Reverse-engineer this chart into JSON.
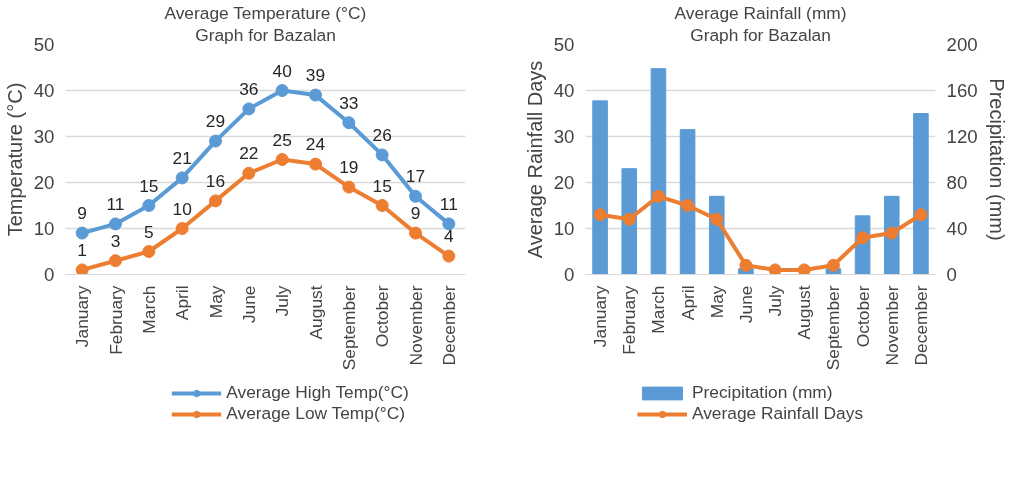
{
  "chart_data": [
    {
      "type": "line",
      "title": "Average Temperature (°C)",
      "subtitle": "Graph for Bazalan",
      "ylabel": "Temperature (°C)",
      "categories": [
        "January",
        "February",
        "March",
        "April",
        "May",
        "June",
        "July",
        "August",
        "September",
        "October",
        "November",
        "December"
      ],
      "series": [
        {
          "name": "Average High Temp(°C)",
          "color": "#5b9bd5",
          "values": [
            9,
            11,
            15,
            21,
            29,
            36,
            40,
            39,
            33,
            26,
            17,
            11
          ]
        },
        {
          "name": "Average Low Temp(°C)",
          "color": "#ed7d31",
          "values": [
            1,
            3,
            5,
            10,
            16,
            22,
            25,
            24,
            19,
            15,
            9,
            4
          ]
        }
      ],
      "ylim": [
        0,
        50
      ],
      "yticks": [
        0,
        10,
        20,
        30,
        40,
        50
      ],
      "grid": "y",
      "legend": "bottom",
      "marker": "circle",
      "line_style": "solid",
      "data_labels": true
    },
    {
      "type": "bar",
      "title": "Average Rainfall (mm)",
      "subtitle": "Graph for Bazalan",
      "ylabel": "Average Rainfall Days",
      "y2label": "Precipitation (mm)",
      "categories": [
        "January",
        "February",
        "March",
        "April",
        "May",
        "June",
        "July",
        "August",
        "September",
        "October",
        "November",
        "December"
      ],
      "series": [
        {
          "name": "Precipitation (mm)",
          "type": "bar",
          "axis": "y2",
          "color": "#5b9bd5",
          "values": [
            151,
            92,
            179,
            126,
            68,
            5,
            0,
            0,
            5,
            51,
            68,
            140
          ]
        },
        {
          "name": "Average Rainfall Days",
          "type": "line",
          "color": "#ed7d31",
          "values": [
            13,
            12,
            17,
            15,
            12,
            2,
            1,
            1,
            2,
            8,
            9,
            13
          ]
        }
      ],
      "ylim": [
        0,
        50
      ],
      "yticks": [
        0,
        10,
        20,
        30,
        40,
        50
      ],
      "y2lim": [
        0,
        200
      ],
      "y2ticks": [
        0,
        40,
        80,
        120,
        160,
        200
      ],
      "grid": "y",
      "legend": "bottom",
      "marker": "circle",
      "line_style": "solid"
    }
  ]
}
